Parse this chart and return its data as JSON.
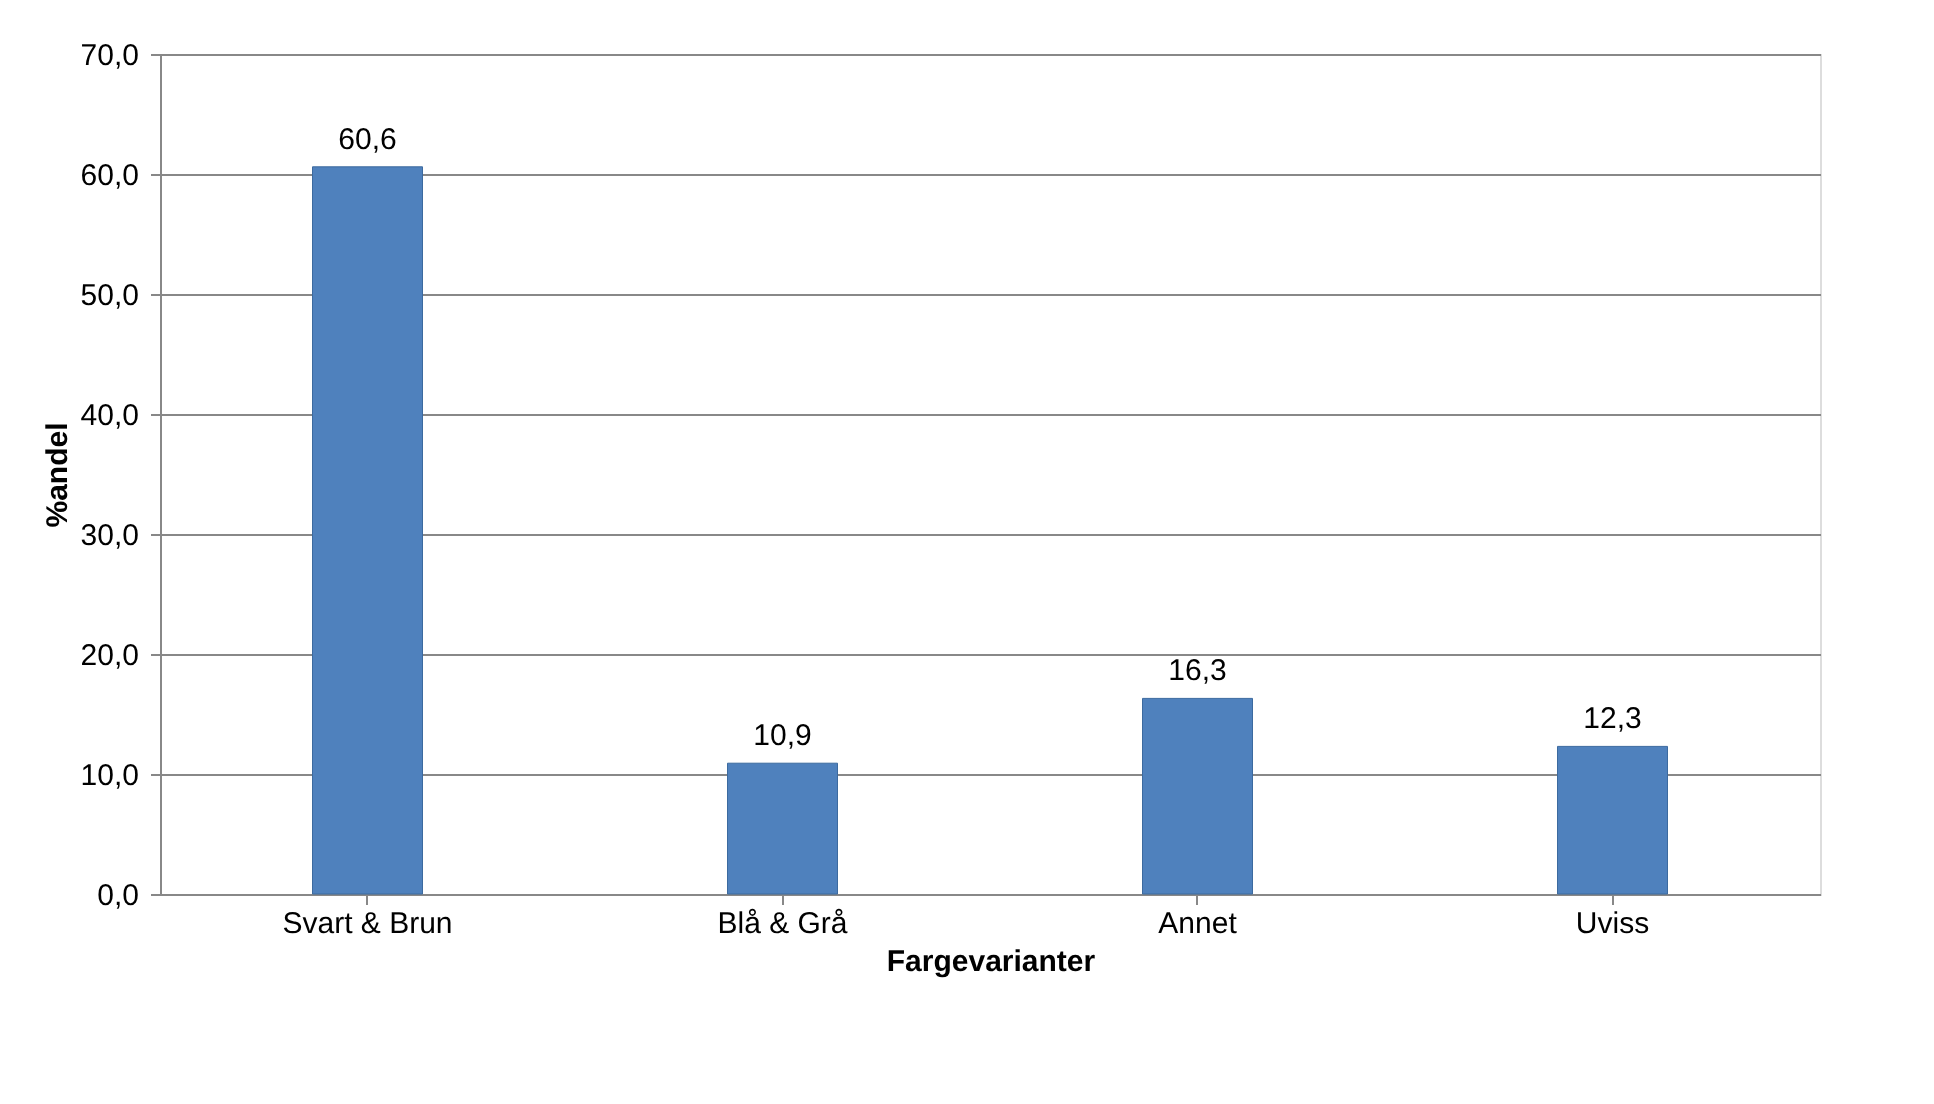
{
  "chart_data": {
    "type": "bar",
    "xlabel": "Fargevarianter",
    "ylabel": "%andel",
    "categories": [
      "Svart & Brun",
      "Blå & Grå",
      "Annet",
      "Uviss"
    ],
    "values": [
      60.6,
      10.9,
      16.3,
      12.3
    ],
    "value_labels": [
      "60,6",
      "10,9",
      "16,3",
      "12,3"
    ],
    "color": "#4f81bd",
    "ylim": [
      0,
      70
    ],
    "yticks": [
      {
        "value": 0,
        "label": "0,0"
      },
      {
        "value": 10,
        "label": "10,0"
      },
      {
        "value": 20,
        "label": "20,0"
      },
      {
        "value": 30,
        "label": "30,0"
      },
      {
        "value": 40,
        "label": "40,0"
      },
      {
        "value": 50,
        "label": "50,0"
      },
      {
        "value": 60,
        "label": "60,0"
      },
      {
        "value": 70,
        "label": "70,0"
      }
    ],
    "grid": "y"
  }
}
